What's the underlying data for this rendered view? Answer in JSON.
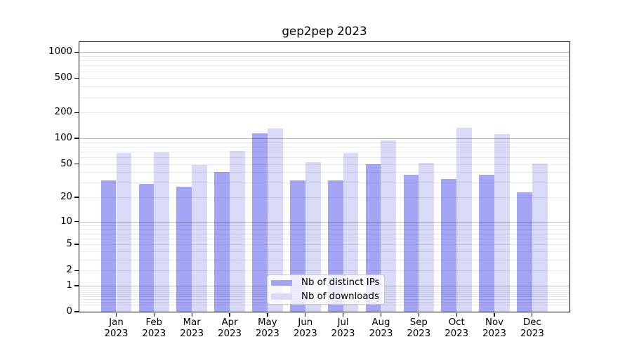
{
  "chart": {
    "title": "gep2pep 2023",
    "legend": {
      "items": [
        {
          "label": "Nb of distinct IPs",
          "color": "#a5a5f6"
        },
        {
          "label": "Nb of downloads",
          "color": "#d9d9f8"
        }
      ]
    },
    "colors": {
      "series_ips": "#a5a5f6",
      "series_downloads": "#d9d9f8",
      "major_grid": "#bdbdbd",
      "minor_grid": "#ebebeb",
      "spine": "#000000",
      "text": "#000000",
      "legend_border": "#cccccc"
    }
  },
  "chart_data": {
    "type": "bar",
    "title": "gep2pep 2023",
    "categories": [
      "Jan 2023",
      "Feb 2023",
      "Mar 2023",
      "Apr 2023",
      "May 2023",
      "Jun 2023",
      "Jul 2023",
      "Aug 2023",
      "Sep 2023",
      "Oct 2023",
      "Nov 2023",
      "Dec 2023"
    ],
    "series": [
      {
        "name": "Nb of distinct IPs",
        "color": "#a5a5f6",
        "values": [
          32,
          29,
          27,
          40,
          115,
          32,
          32,
          50,
          37,
          33,
          37,
          23
        ]
      },
      {
        "name": "Nb of downloads",
        "color": "#d9d9f8",
        "values": [
          67,
          69,
          49,
          72,
          130,
          53,
          67,
          95,
          52,
          134,
          113,
          51
        ]
      }
    ],
    "xlabel": "",
    "ylabel": "",
    "yscale": "log1p",
    "ylim": [
      0,
      1300
    ],
    "yticks": [
      0,
      1,
      2,
      5,
      10,
      20,
      50,
      100,
      200,
      500,
      1000
    ],
    "grid": "major+minor, horizontal, drawn above bars",
    "legend_position": "lower center"
  }
}
